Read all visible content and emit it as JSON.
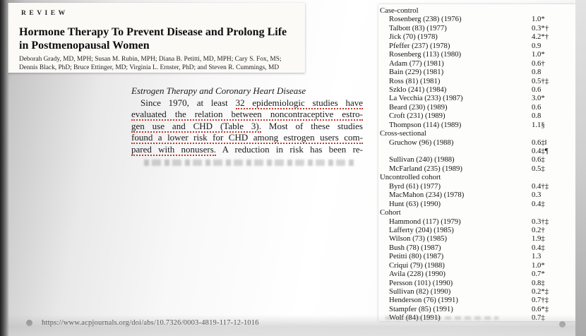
{
  "paper_header": {
    "kicker": "REVIEW",
    "title_lines": [
      "Hormone Therapy To Prevent Disease and Prolong Life",
      "in Postmenopausal Women"
    ],
    "authors_lines": [
      "Deborah Grady, MD, MPH; Susan M. Rubin, MPH; Diana B. Petitti, MD, MPH; Cary S. Fox, MS;",
      "Dennis Black, PhD; Bruce Ettinger, MD; Virginia L. Ernster, PhD; and Steven R. Cummings, MD"
    ]
  },
  "excerpt": {
    "heading": "Estrogen Therapy and Coronary Heart Disease",
    "lines": [
      {
        "indent": true,
        "pre": "Since 1970, at least ",
        "underline": "32 epidemiologic studies have",
        "post": ""
      },
      {
        "indent": false,
        "pre": "",
        "underline": "evaluated the relation between noncontraceptive estro-",
        "post": ""
      },
      {
        "indent": false,
        "pre": "",
        "underline": "gen use and CHD (Table 3).",
        "post": " Most of these studies"
      },
      {
        "indent": false,
        "pre": "",
        "underline": "found a lower risk for CHD among estrogen users com-",
        "post": ""
      },
      {
        "indent": false,
        "pre": "",
        "underline": "pared with nonusers.",
        "post": " A reduction in risk has been re-"
      }
    ]
  },
  "study_table": {
    "groups": [
      {
        "label": "Case-control",
        "rows": [
          [
            "Rosenberg (238) (1976)",
            "1.0*"
          ],
          [
            "Talbott (83) (1977)",
            "0.3*†"
          ],
          [
            "Jick (70) (1978)",
            "4.2*†"
          ],
          [
            "Pfeffer (237) (1978)",
            "0.9"
          ],
          [
            "Rosenberg (113) (1980)",
            "1.0*"
          ],
          [
            "Adam (77) (1981)",
            "0.6†"
          ],
          [
            "Bain (229) (1981)",
            "0.8"
          ],
          [
            "Ross (81) (1981)",
            "0.5†‡"
          ],
          [
            "Szklo (241) (1984)",
            "0.6"
          ],
          [
            "La Vecchia (233) (1987)",
            "3.0*"
          ],
          [
            "Beard (230) (1989)",
            "0.6"
          ],
          [
            "Croft (231) (1989)",
            "0.8"
          ],
          [
            "Thompson (114) (1989)",
            "1.1§"
          ]
        ]
      },
      {
        "label": "Cross-sectional",
        "rows": [
          [
            "Gruchow (96) (1988)",
            "0.6‡‖"
          ],
          [
            "",
            "0.4‡¶"
          ],
          [
            "Sullivan (240) (1988)",
            "0.6‡"
          ],
          [
            "McFarland (235) (1989)",
            "0.5‡"
          ]
        ]
      },
      {
        "label": "Uncontrolled cohort",
        "rows": [
          [
            "Byrd (61) (1977)",
            "0.4†‡"
          ],
          [
            "MacMahon (234) (1978)",
            "0.3"
          ],
          [
            "Hunt (63) (1990)",
            "0.4‡"
          ]
        ]
      },
      {
        "label": "Cohort",
        "rows": [
          [
            "Hammond (117) (1979)",
            "0.3†‡"
          ],
          [
            "Lafferty (204) (1985)",
            "0.2†"
          ],
          [
            "Wilson (73) (1985)",
            "1.9‡"
          ],
          [
            "Bush (78) (1987)",
            "0.4‡"
          ],
          [
            "Petitti (80) (1987)",
            "1.3"
          ],
          [
            "Criqui (79) (1988)",
            "1.0*"
          ],
          [
            "Avila (228) (1990)",
            "0.7*"
          ],
          [
            "Persson (101) (1990)",
            "0.8‡"
          ],
          [
            "Sullivan (82) (1990)",
            "0.2*‡"
          ],
          [
            "Henderson (76) (1991)",
            "0.7†‡"
          ],
          [
            "Stampfer (85) (1991)",
            "0.6*‡"
          ],
          [
            "Wolf (84) (1991)",
            "0.7‡"
          ]
        ]
      }
    ]
  },
  "footer": {
    "url": "https://www.acpjournals.org/doi/abs/10.7326/0003-4819-117-12-1016"
  },
  "colors": {
    "annotation_red": "#c13b2e",
    "paper_white": "#fbfaf7",
    "slide_gray": "#d9d9d9"
  }
}
